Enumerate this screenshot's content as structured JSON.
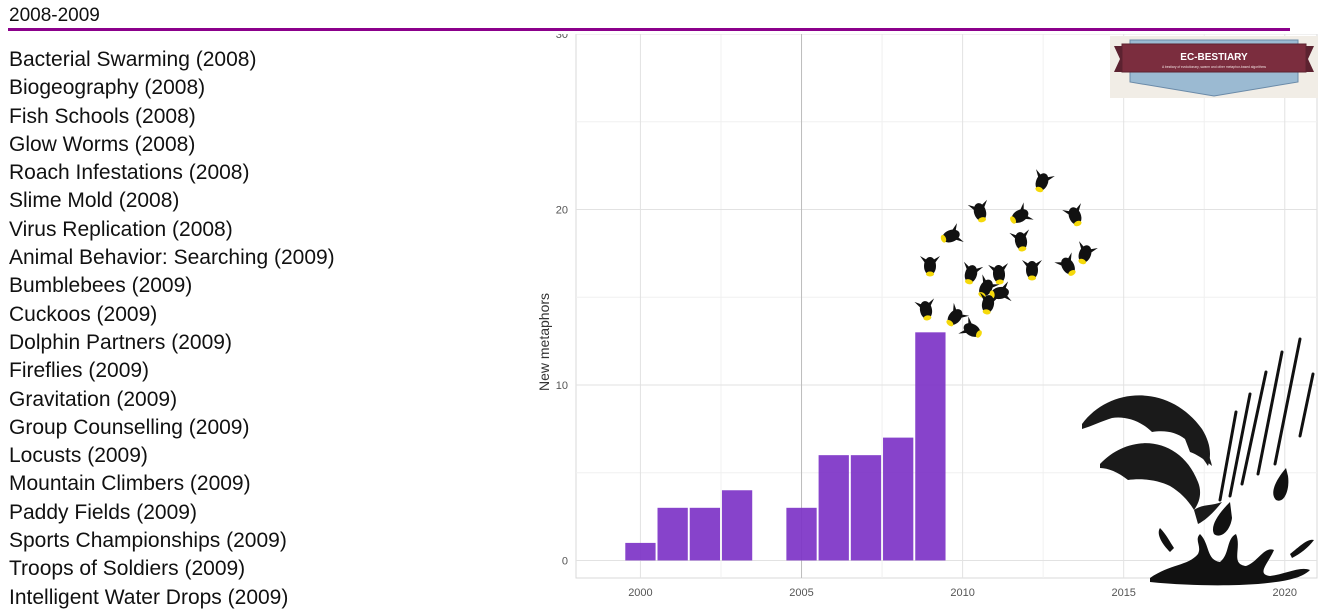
{
  "header": {
    "title": "2008-2009"
  },
  "metaphors": [
    "Bacterial Swarming (2008)",
    "Biogeography (2008)",
    "Fish Schools (2008)",
    "Glow Worms (2008)",
    "Roach Infestations (2008)",
    "Slime Mold (2008)",
    "Virus Replication (2008)",
    "Animal Behavior: Searching (2009)",
    "Bumblebees (2009)",
    "Cuckoos (2009)",
    "Dolphin Partners (2009)",
    "Fireflies (2009)",
    "Gravitation (2009)",
    "Group Counselling (2009)",
    "Locusts (2009)",
    "Mountain Climbers (2009)",
    "Paddy Fields (2009)",
    "Sports Championships (2009)",
    "Troops of Soldiers (2009)",
    "Intelligent Water Drops (2009)"
  ],
  "logo": {
    "name": "EC-BESTIARY",
    "tagline": "A bestiary of evolutionary, swarm and other metaphor-based algorithms"
  },
  "chart_data": {
    "type": "bar",
    "x": [
      2000,
      2001,
      2002,
      2003,
      2005,
      2006,
      2007,
      2008,
      2009
    ],
    "values": [
      1,
      3,
      3,
      4,
      3,
      6,
      6,
      7,
      13
    ],
    "xlabel": "",
    "ylabel": "New metaphors",
    "xlim": [
      1998,
      2021
    ],
    "ylim": [
      -1,
      30
    ],
    "xticks": [
      2000,
      2005,
      2010,
      2015,
      2020
    ],
    "yticks": [
      0,
      10,
      20,
      30
    ],
    "grid": true,
    "bar_color": "#7d33c7",
    "vertical_rule_at": 2005
  },
  "colors": {
    "accent": "#8b008b",
    "bar": "#7d33c7",
    "logo_banner": "#7b2d3e",
    "logo_ribbon": "#9bbad2"
  },
  "decorations": [
    "firefly-icon",
    "dolphin-icon",
    "water-drop-icon",
    "splash-icon"
  ]
}
